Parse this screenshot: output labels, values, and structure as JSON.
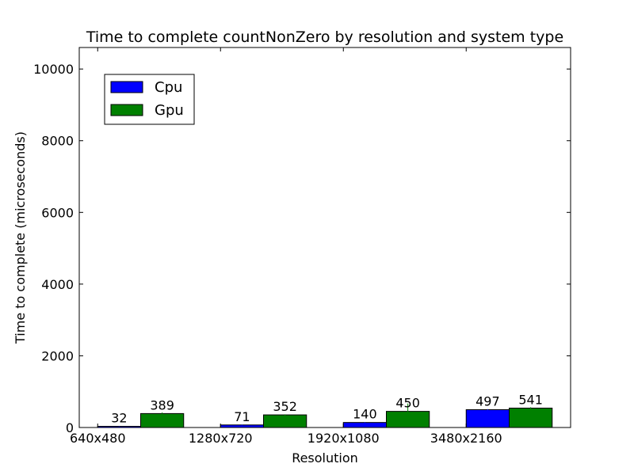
{
  "chart_data": {
    "type": "bar",
    "title": "Time to complete countNonZero by resolution and system type",
    "xlabel": "Resolution",
    "ylabel": "Time to complete (microseconds)",
    "categories": [
      "640x480",
      "1280x720",
      "1920x1080",
      "3480x2160"
    ],
    "series": [
      {
        "name": "Cpu",
        "color": "#0000ff",
        "values": [
          32,
          71,
          140,
          497
        ],
        "errors": [
          5,
          8,
          10,
          15
        ]
      },
      {
        "name": "Gpu",
        "color": "#008000",
        "values": [
          389,
          352,
          450,
          541
        ],
        "errors": [
          30,
          15,
          220,
          25
        ]
      }
    ],
    "data_labels": {
      "Cpu": [
        "32",
        "71",
        "140",
        "497"
      ],
      "Gpu": [
        "389",
        "352",
        "450",
        "541"
      ]
    },
    "ylim": [
      0,
      10600
    ],
    "yticks": [
      0,
      2000,
      4000,
      6000,
      8000,
      10000
    ],
    "grid": false,
    "legend": "top-left"
  }
}
